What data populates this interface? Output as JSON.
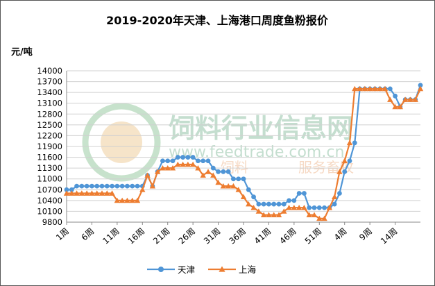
{
  "chart_data": {
    "type": "line",
    "title": "2019-2020年天津、上海港口周度鱼粉报价",
    "ylabel": "元/吨",
    "xlabel": "",
    "ylim": [
      9800,
      14000
    ],
    "yticks": [
      9800,
      10100,
      10400,
      10700,
      11000,
      11300,
      11600,
      11900,
      12200,
      12500,
      12800,
      13100,
      13400,
      13700,
      14000
    ],
    "x_labels": [
      "1周",
      "6周",
      "11周",
      "16周",
      "21周",
      "26周",
      "31周",
      "36周",
      "41周",
      "46周",
      "51周",
      "4周",
      "9周",
      "14周"
    ],
    "grid": "horizontal",
    "legend_position": "bottom",
    "series": [
      {
        "name": "天津",
        "color": "#4F95D6",
        "marker": "circle",
        "values": [
          10700,
          10700,
          10800,
          10800,
          10800,
          10800,
          10800,
          10800,
          10800,
          10800,
          10800,
          10800,
          10800,
          10800,
          10800,
          10800,
          11100,
          10800,
          11200,
          11500,
          11500,
          11500,
          11600,
          11600,
          11600,
          11600,
          11500,
          11500,
          11500,
          11300,
          11200,
          11200,
          11200,
          11000,
          11000,
          11000,
          10700,
          10500,
          10300,
          10300,
          10300,
          10300,
          10300,
          10300,
          10400,
          10400,
          10600,
          10600,
          10200,
          10200,
          10200,
          10200,
          10200,
          10300,
          10600,
          11200,
          11500,
          12000,
          13500,
          13500,
          13500,
          13500,
          13500,
          13500,
          13500,
          13300,
          13000,
          13200,
          13200,
          13200,
          13600
        ]
      },
      {
        "name": "上海",
        "color": "#ED7D31",
        "marker": "triangle",
        "values": [
          10600,
          10600,
          10600,
          10600,
          10600,
          10600,
          10600,
          10600,
          10600,
          10600,
          10400,
          10400,
          10400,
          10400,
          10400,
          10700,
          11100,
          10800,
          11200,
          11300,
          11300,
          11300,
          11400,
          11400,
          11400,
          11400,
          11300,
          11100,
          11200,
          11100,
          10900,
          10800,
          10800,
          10800,
          10700,
          10500,
          10300,
          10200,
          10100,
          10000,
          10000,
          10000,
          10000,
          10100,
          10200,
          10200,
          10200,
          10200,
          10000,
          10000,
          9900,
          9900,
          10200,
          10500,
          11200,
          11500,
          12000,
          13500,
          13500,
          13500,
          13500,
          13500,
          13500,
          13500,
          13200,
          13000,
          13000,
          13200,
          13200,
          13200,
          13500
        ]
      }
    ]
  },
  "watermark": {
    "site_name": "饲料行业信息网",
    "domain": "www.feedtrade.com.cn",
    "slogan_left": "饲料",
    "slogan_right": "服务畜牧"
  }
}
